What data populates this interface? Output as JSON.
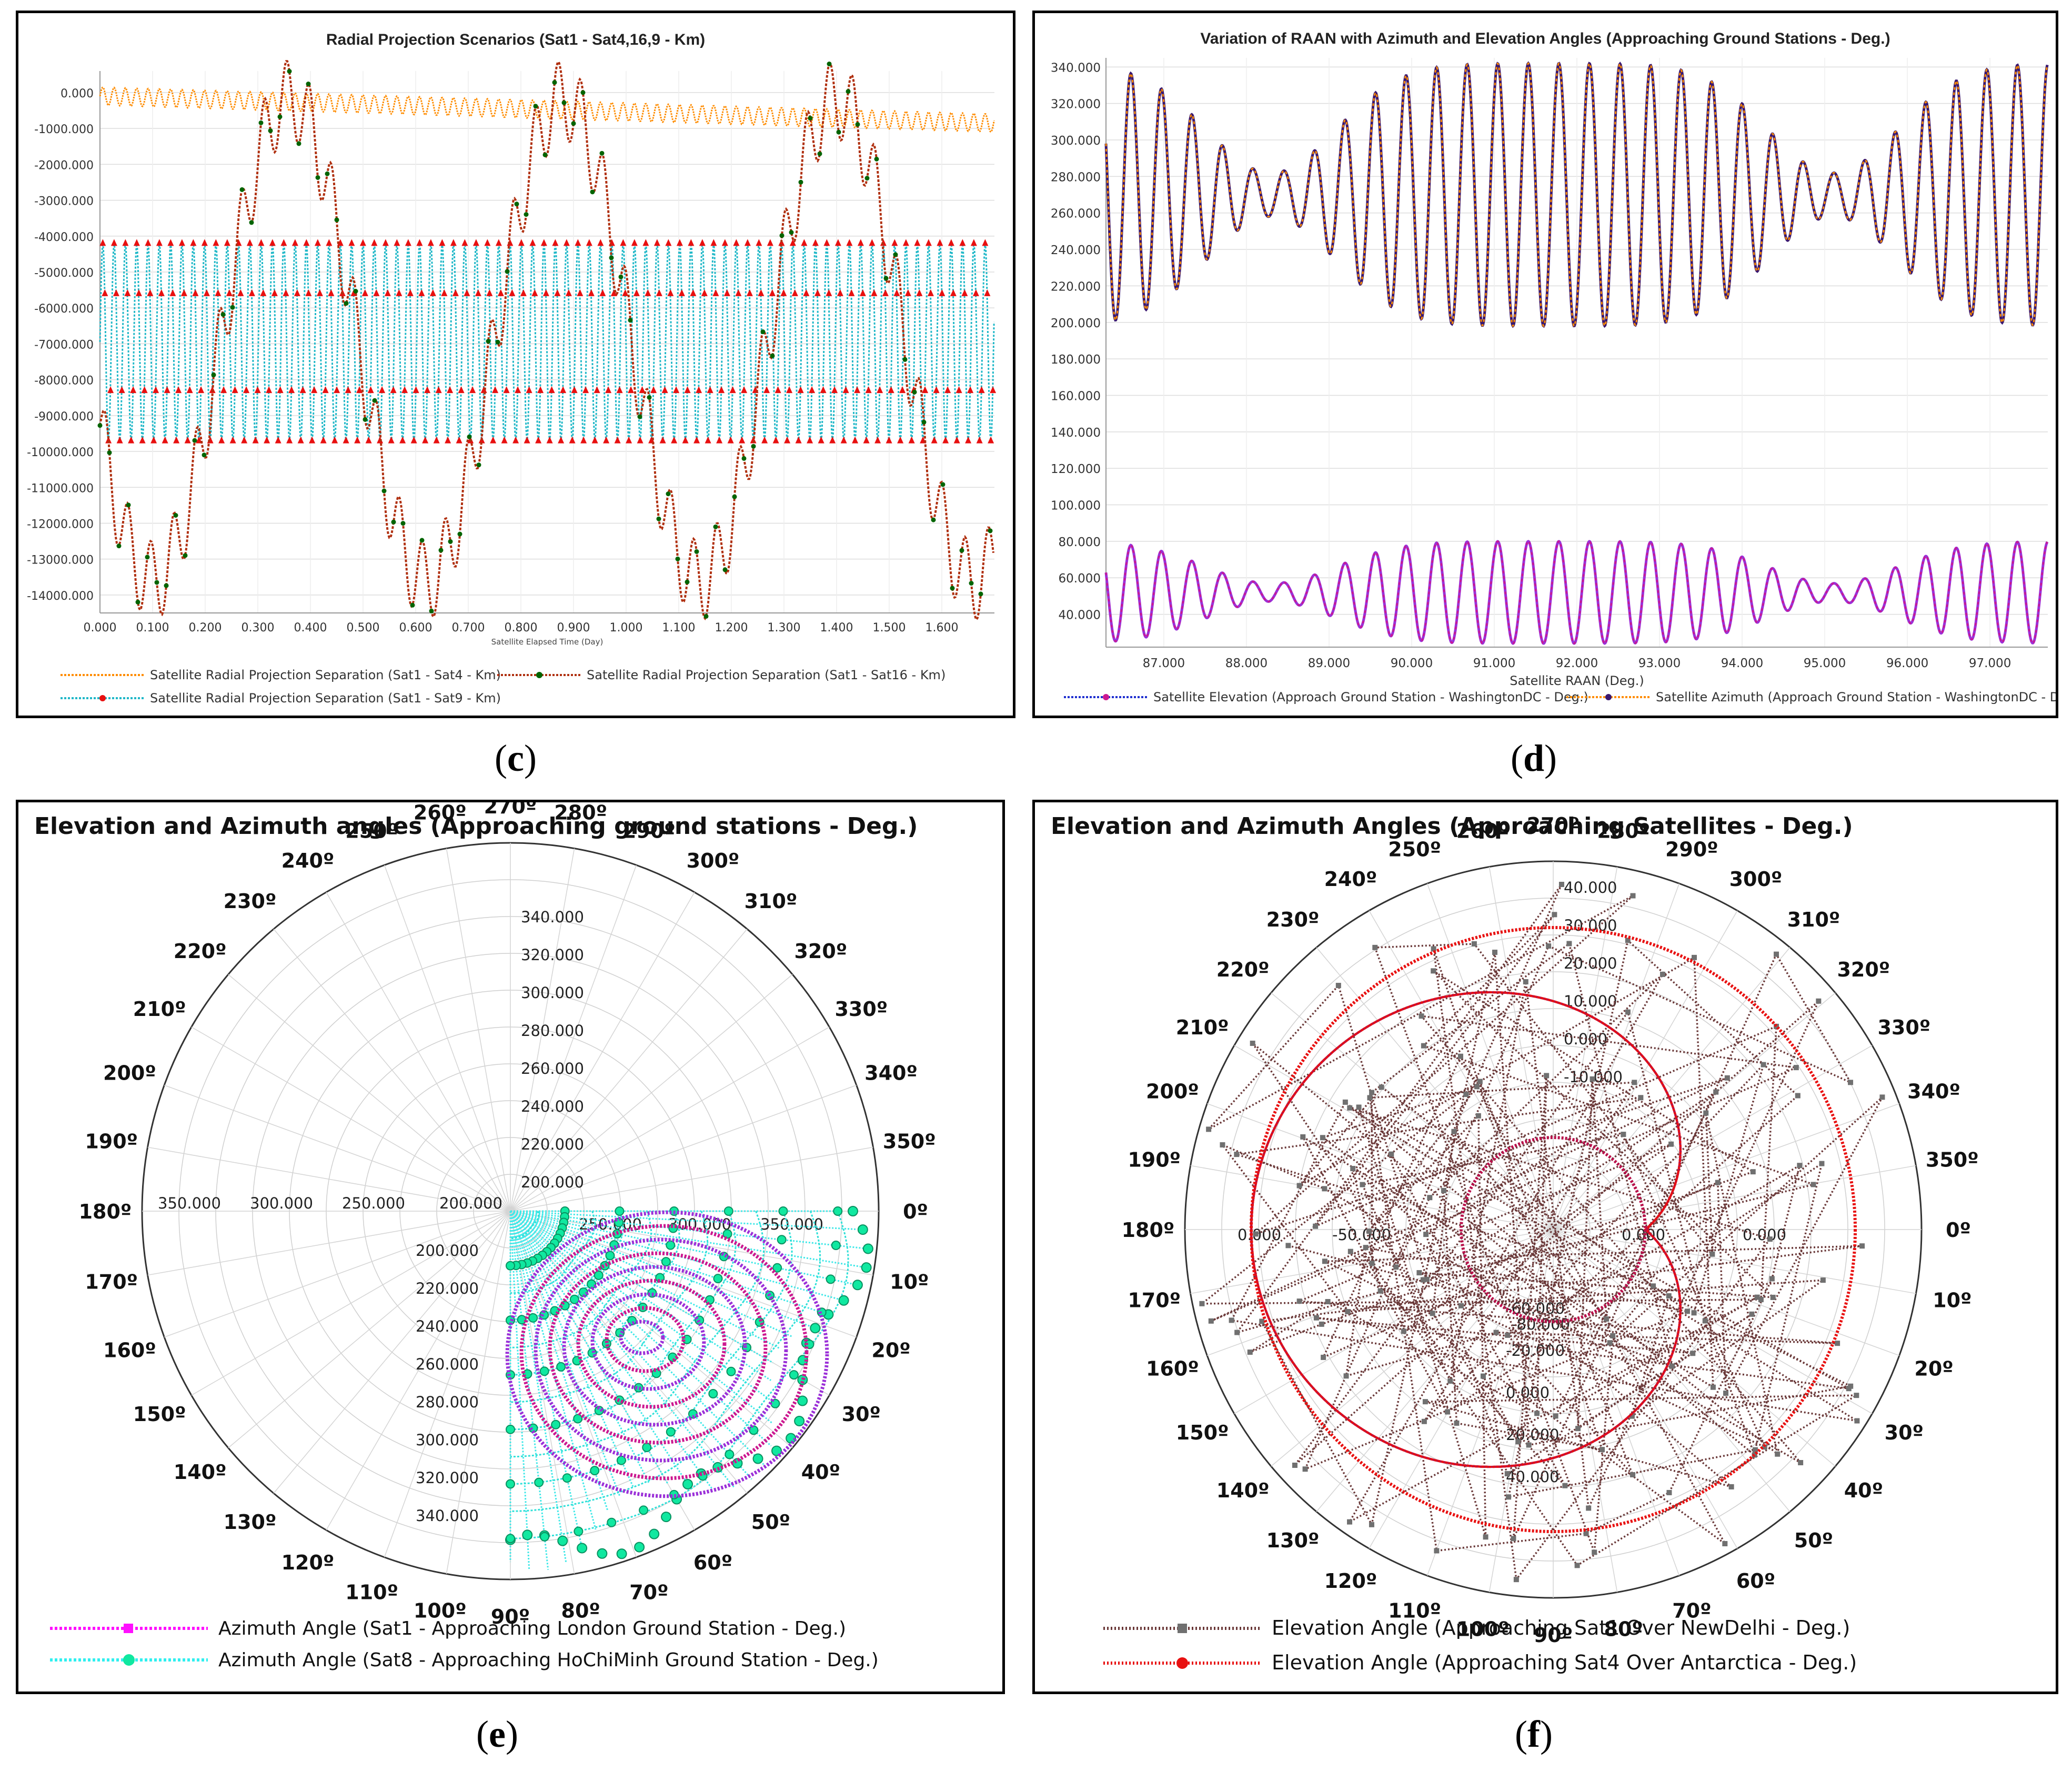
{
  "panel_labels": {
    "c": {
      "open": "(",
      "letter": "c",
      "close": ")"
    },
    "d": {
      "open": "(",
      "letter": "d",
      "close": ")"
    },
    "e": {
      "open": "(",
      "letter": "e",
      "close": ")"
    },
    "f": {
      "open": "(",
      "letter": "f",
      "close": ")"
    }
  },
  "colors": {
    "orange": "#ff8c00",
    "green": "#006400",
    "brown_red": "#b03010",
    "cyan": "#20b8c8",
    "red": "#e81010",
    "purple": "#3a1870",
    "magenta": "#cc1890",
    "violet": "#9b30d8",
    "teal": "#10e8a0",
    "gray": "#707070",
    "dark_brown": "#6a3838"
  },
  "chart_data": [
    {
      "id": "c",
      "type": "line",
      "title": "Radial Projection Scenarios (Sat1 - Sat4,16,9 - Km)",
      "xlabel": "Satellite Elapsed Time (Day)",
      "ylabel": "",
      "xlim": [
        0.0,
        1.7
      ],
      "ylim": [
        -14500,
        600
      ],
      "x_ticks": [
        "0.000",
        "0.100",
        "0.200",
        "0.300",
        "0.400",
        "0.500",
        "0.600",
        "0.700",
        "0.800",
        "0.900",
        "1.000",
        "1.100",
        "1.200",
        "1.300",
        "1.400",
        "1.500",
        "1.600"
      ],
      "y_ticks": [
        "0.000",
        "-1000.000",
        "-2000.000",
        "-3000.000",
        "-4000.000",
        "-5000.000",
        "-6000.000",
        "-7000.000",
        "-8000.000",
        "-9000.000",
        "-10000.000",
        "-11000.000",
        "-12000.000",
        "-13000.000",
        "-14000.000"
      ],
      "series": [
        {
          "name": "Satellite Radial Projection Separation (Sat1 - Sat4 - Km)",
          "model": "sine",
          "center_start": -100,
          "center_end": -850,
          "amplitude": 250,
          "period_days": 0.0215
        },
        {
          "name": "Satellite Radial Projection Separation (Sat1 - Sat16 - Km)",
          "model": "two-sine",
          "offset": -6900,
          "amplitude": 6700,
          "period_days": 0.52,
          "phase_peak_days": 0.36,
          "ripple_amplitude": 1100,
          "ripple_period_days": 0.043
        },
        {
          "name": "Satellite Radial Projection Separation (Sat1 - Sat9 - Km)",
          "model": "sine",
          "center": -6950,
          "amplitude": 2750,
          "period_days": 0.0215
        }
      ]
    },
    {
      "id": "d",
      "type": "line",
      "title": "Variation of RAAN with Azimuth and Elevation Angles (Approaching Ground Stations - Deg.)",
      "xlabel": "Satellite RAAN (Deg.)",
      "ylabel": "",
      "xlim": [
        86.3,
        97.7
      ],
      "ylim": [
        22,
        345
      ],
      "x_ticks": [
        "87.000",
        "88.000",
        "89.000",
        "90.000",
        "91.000",
        "92.000",
        "93.000",
        "94.000",
        "95.000",
        "96.000",
        "97.000"
      ],
      "y_ticks": [
        "40.000",
        "60.000",
        "80.000",
        "100.000",
        "120.000",
        "140.000",
        "160.000",
        "180.000",
        "200.000",
        "220.000",
        "240.000",
        "260.000",
        "280.000",
        "300.000",
        "320.000",
        "340.000"
      ],
      "series": [
        {
          "name": "Satellite Elevation (Approach Ground Station - WashingtonDC - Deg.)",
          "model": "modulated-sine",
          "center": 52,
          "amplitude_max": 28,
          "amplitude_min": 5,
          "period_deg": 0.37
        },
        {
          "name": "Satellite Azimuth (Approach Ground Station - WashingtonDC - Deg.)",
          "model": "modulated-sine",
          "center": 270,
          "amplitude_max": 72,
          "amplitude_min": 12,
          "period_deg": 0.37
        }
      ]
    },
    {
      "id": "e",
      "type": "polar-scatter",
      "title": "Elevation and Azimuth angles (Approaching ground stations - Deg.)",
      "angle_labels": [
        "0º",
        "10º",
        "20º",
        "30º",
        "40º",
        "50º",
        "60º",
        "70º",
        "80º",
        "90º",
        "100º",
        "110º",
        "120º",
        "130º",
        "140º",
        "150º",
        "160º",
        "170º",
        "180º",
        "190º",
        "200º",
        "210º",
        "220º",
        "230º",
        "240º",
        "250º",
        "260º",
        "270º",
        "280º",
        "290º",
        "300º",
        "310º",
        "320º",
        "330º",
        "340º",
        "350º"
      ],
      "radial_up_ticks": [
        "200.000",
        "220.000",
        "240.000",
        "260.000",
        "280.000",
        "300.000",
        "320.000",
        "340.000"
      ],
      "radial_down_ticks": [
        "200.000",
        "220.000",
        "240.000",
        "260.000",
        "280.000",
        "300.000",
        "320.000",
        "340.000"
      ],
      "radial_left_ticks": [
        "350.000",
        "300.000",
        "250.000",
        "200.000"
      ],
      "radial_right_ticks": [
        "250.000",
        "300.000",
        "350.000"
      ],
      "series": [
        {
          "name": "Azimuth Angle (Sat1 - Approaching London Ground Station - Deg.)",
          "model": "nested-loops",
          "angle_range_deg": [
            0,
            90
          ],
          "radius_range": [
            200,
            360
          ]
        },
        {
          "name": "Azimuth Angle (Sat8 - Approaching HoChiMinh Ground Station - Deg.)",
          "model": "sector-fill",
          "angle_range_deg": [
            0,
            90
          ],
          "radius_range": [
            200,
            400
          ]
        }
      ]
    },
    {
      "id": "f",
      "type": "polar-scatter",
      "title": "Elevation and Azimuth Angles (Approaching Satellites - Deg.)",
      "angle_labels": [
        "0º",
        "10º",
        "20º",
        "30º",
        "40º",
        "50º",
        "60º",
        "70º",
        "80º",
        "90º",
        "100º",
        "110º",
        "120º",
        "130º",
        "140º",
        "150º",
        "160º",
        "170º",
        "180º",
        "190º",
        "200º",
        "210º",
        "220º",
        "230º",
        "240º",
        "250º",
        "260º",
        "270º",
        "280º",
        "290º",
        "300º",
        "310º",
        "320º",
        "330º",
        "340º",
        "350º"
      ],
      "radial_up_ticks": [
        "40.000",
        "30.000",
        "20.000",
        "10.000",
        "0.000",
        "-10.000"
      ],
      "radial_down_ticks": [
        "-60.000",
        "-20.000",
        "0.000",
        "20.000",
        "40.000"
      ],
      "radial_mid_ticks": [
        "0.000",
        "-50.000",
        "-80.000",
        "0.000",
        "0.000"
      ],
      "series": [
        {
          "name": "Elevation Angle (Approaching Sat1 Over NewDelhi - Deg.)",
          "model": "scattered-rings",
          "radius_min": 0.25,
          "radius_max": 1.0
        },
        {
          "name": "Elevation Angle (Approaching Sat4 Over Antarctica - Deg.)",
          "model": "rosette",
          "radius_min": 0.25,
          "radius_max": 0.82
        }
      ]
    }
  ]
}
